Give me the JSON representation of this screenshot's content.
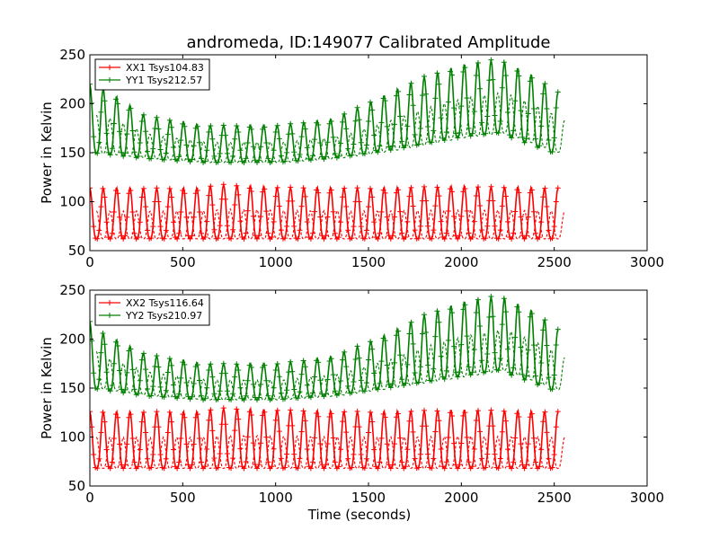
{
  "figure": {
    "title": "andromeda, ID:149077 Calibrated Amplitude"
  },
  "chart_data": [
    {
      "type": "line",
      "ylabel": "Power in Kelvin",
      "xlabel": "",
      "xlim": [
        0,
        3000
      ],
      "ylim": [
        50,
        250
      ],
      "xticks": [
        0,
        500,
        1000,
        1500,
        2000,
        2500,
        3000
      ],
      "yticks": [
        50,
        100,
        150,
        200,
        250
      ],
      "grid": false,
      "legend": "top-left",
      "series": [
        {
          "name": "XX1 Tsys104.83",
          "color": "#ff0000",
          "marker": "plus",
          "period": 72,
          "x_end": 2520,
          "base": [
            [
              0,
              62
            ],
            [
              600,
              62
            ],
            [
              1000,
              62
            ],
            [
              1500,
              62
            ],
            [
              2000,
              62
            ],
            [
              2520,
              62
            ]
          ],
          "peak": [
            [
              0,
              114
            ],
            [
              600,
              114
            ],
            [
              680,
              118
            ],
            [
              1000,
              115
            ],
            [
              1500,
              114
            ],
            [
              2000,
              116
            ],
            [
              2520,
              114
            ]
          ]
        },
        {
          "name": "YY1 Tsys212.57",
          "color": "#008000",
          "marker": "plus",
          "period": 72,
          "x_end": 2520,
          "base": [
            [
              0,
              150
            ],
            [
              300,
              144
            ],
            [
              600,
              140
            ],
            [
              1000,
              140
            ],
            [
              1300,
              144
            ],
            [
              1600,
              152
            ],
            [
              2000,
              166
            ],
            [
              2200,
              170
            ],
            [
              2520,
              148
            ]
          ],
          "peak": [
            [
              0,
              220
            ],
            [
              80,
              215
            ],
            [
              300,
              188
            ],
            [
              600,
              178
            ],
            [
              1000,
              178
            ],
            [
              1300,
              184
            ],
            [
              1600,
              210
            ],
            [
              1800,
              228
            ],
            [
              2000,
              240
            ],
            [
              2200,
              246
            ],
            [
              2400,
              228
            ],
            [
              2520,
              212
            ]
          ]
        }
      ]
    },
    {
      "type": "line",
      "ylabel": "Power in Kelvin",
      "xlabel": "Time (seconds)",
      "xlim": [
        0,
        3000
      ],
      "ylim": [
        50,
        250
      ],
      "xticks": [
        0,
        500,
        1000,
        1500,
        2000,
        2500,
        3000
      ],
      "yticks": [
        50,
        100,
        150,
        200,
        250
      ],
      "grid": false,
      "legend": "top-left",
      "series": [
        {
          "name": "XX2 Tsys116.64",
          "color": "#ff0000",
          "marker": "plus",
          "period": 72,
          "x_end": 2520,
          "base": [
            [
              0,
              68
            ],
            [
              600,
              68
            ],
            [
              1000,
              68
            ],
            [
              1500,
              68
            ],
            [
              2000,
              68
            ],
            [
              2520,
              68
            ]
          ],
          "peak": [
            [
              0,
              126
            ],
            [
              600,
              126
            ],
            [
              680,
              130
            ],
            [
              1000,
              128
            ],
            [
              1500,
              126
            ],
            [
              2000,
              128
            ],
            [
              2520,
              126
            ]
          ]
        },
        {
          "name": "YY2 Tsys210.97",
          "color": "#008000",
          "marker": "plus",
          "period": 72,
          "x_end": 2520,
          "base": [
            [
              0,
              150
            ],
            [
              300,
              142
            ],
            [
              600,
              138
            ],
            [
              1000,
              138
            ],
            [
              1300,
              142
            ],
            [
              1600,
              150
            ],
            [
              2000,
              162
            ],
            [
              2200,
              168
            ],
            [
              2520,
              146
            ]
          ],
          "peak": [
            [
              0,
              218
            ],
            [
              80,
              205
            ],
            [
              300,
              185
            ],
            [
              600,
              175
            ],
            [
              1000,
              175
            ],
            [
              1300,
              182
            ],
            [
              1600,
              205
            ],
            [
              1800,
              225
            ],
            [
              2000,
              238
            ],
            [
              2200,
              245
            ],
            [
              2400,
              228
            ],
            [
              2520,
              210
            ]
          ]
        }
      ]
    }
  ]
}
